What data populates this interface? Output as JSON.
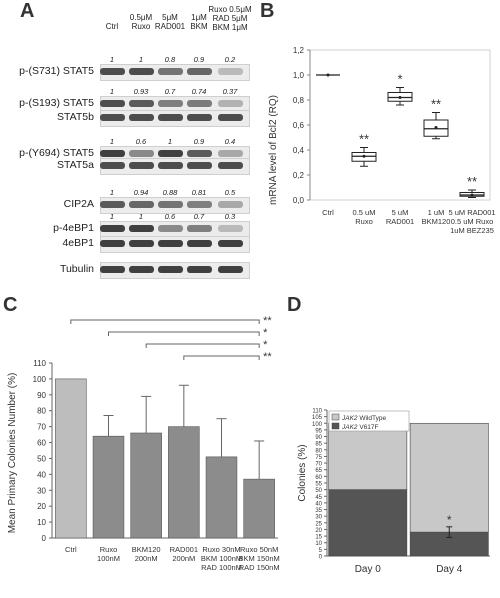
{
  "panels": {
    "a": "A",
    "b": "B",
    "c": "C",
    "d": "D"
  },
  "western_blot": {
    "columns": [
      "Ctrl",
      "0.5μM\nRuxo",
      "5μM\nRAD001",
      "1μM\nBKM",
      "Ruxo 0.5μM\nRAD 5μM\nBKM 1μM"
    ],
    "rows": [
      {
        "label": "p-(S731) STAT5",
        "quant": [
          "1",
          "1",
          "0.8",
          "0.9",
          "0.2"
        ],
        "intensity": [
          0.8,
          0.8,
          0.65,
          0.7,
          0.3
        ]
      },
      {
        "label": "p-(S193) STAT5",
        "quant": [
          "1",
          "0.93",
          "0.7",
          "0.74",
          "0.37"
        ],
        "intensity": [
          0.8,
          0.75,
          0.6,
          0.62,
          0.35
        ]
      },
      {
        "label": "STAT5b",
        "quant": null,
        "intensity": [
          0.8,
          0.8,
          0.8,
          0.8,
          0.8
        ]
      },
      {
        "label": "p-(Y694) STAT5",
        "quant": [
          "1",
          "0.6",
          "1",
          "0.9",
          "0.4"
        ],
        "intensity": [
          0.85,
          0.55,
          0.85,
          0.75,
          0.4
        ]
      },
      {
        "label": "STAT5a",
        "quant": null,
        "intensity": [
          0.8,
          0.8,
          0.8,
          0.8,
          0.8
        ]
      },
      {
        "label": "CIP2A",
        "quant": [
          "1",
          "0.94",
          "0.88",
          "0.81",
          "0.5"
        ],
        "intensity": [
          0.75,
          0.7,
          0.65,
          0.6,
          0.4
        ]
      },
      {
        "label": "p-4eBP1",
        "quant": [
          "1",
          "1",
          "0.6",
          "0.7",
          "0.3"
        ],
        "intensity": [
          0.85,
          0.85,
          0.55,
          0.6,
          0.3
        ]
      },
      {
        "label": "4eBP1",
        "quant": null,
        "intensity": [
          0.85,
          0.85,
          0.85,
          0.85,
          0.85
        ]
      },
      {
        "label": "Tubulin",
        "quant": null,
        "intensity": [
          0.85,
          0.85,
          0.85,
          0.85,
          0.85
        ]
      }
    ]
  },
  "chart_data": [
    {
      "id": "B",
      "type": "box",
      "ylabel": "mRNA level of Bcl2 (RQ)",
      "ylim": [
        0,
        1.2
      ],
      "yticks": [
        "0,0",
        "0,2",
        "0,4",
        "0,6",
        "0,8",
        "1,0",
        "1,2"
      ],
      "categories": [
        "Ctrl",
        "0.5 uM\nRuxo",
        "5 uM\nRAD001",
        "1 uM\nBKM120",
        "5 uM RAD001\n0.5 uM Ruxo\n1uM BEZ235"
      ],
      "boxes": [
        {
          "min": 1.0,
          "q1": 1.0,
          "median": 1.0,
          "q3": 1.0,
          "max": 1.0,
          "mean": 1.0,
          "sig": ""
        },
        {
          "min": 0.27,
          "q1": 0.31,
          "median": 0.35,
          "q3": 0.38,
          "max": 0.42,
          "mean": 0.35,
          "sig": "**"
        },
        {
          "min": 0.76,
          "q1": 0.79,
          "median": 0.82,
          "q3": 0.86,
          "max": 0.9,
          "mean": 0.82,
          "sig": "*"
        },
        {
          "min": 0.49,
          "q1": 0.51,
          "median": 0.57,
          "q3": 0.64,
          "max": 0.7,
          "mean": 0.58,
          "sig": "**"
        },
        {
          "min": 0.02,
          "q1": 0.03,
          "median": 0.04,
          "q3": 0.06,
          "max": 0.08,
          "mean": 0.04,
          "sig": "**"
        }
      ]
    },
    {
      "id": "C",
      "type": "bar",
      "ylabel": "Mean Primary Colonies Number (%)",
      "ylim": [
        0,
        110
      ],
      "yticks": [
        "0",
        "10",
        "20",
        "30",
        "40",
        "50",
        "60",
        "70",
        "80",
        "90",
        "100",
        "110"
      ],
      "categories": [
        "Ctrl",
        "Ruxo\n100nM",
        "BKM120\n200nM",
        "RAD001\n200nM",
        "Ruxo 30nM\nBKM 100nM\nRAD 100nM",
        "Ruxo 50nM\nBKM 150nM\nRAD 150nM"
      ],
      "values": [
        100,
        64,
        66,
        70,
        51,
        37
      ],
      "errors": [
        0,
        13,
        23,
        26,
        24,
        24
      ],
      "brackets": [
        {
          "from": 0,
          "to": 5,
          "label": "**"
        },
        {
          "from": 1,
          "to": 5,
          "label": "*"
        },
        {
          "from": 2,
          "to": 5,
          "label": "*"
        },
        {
          "from": 3,
          "to": 5,
          "label": "**"
        }
      ]
    },
    {
      "id": "D",
      "type": "stacked-bar",
      "ylabel": "Colonies   (%)",
      "ylim": [
        0,
        110
      ],
      "yticks": [
        "0",
        "5",
        "10",
        "15",
        "20",
        "25",
        "30",
        "35",
        "40",
        "45",
        "50",
        "55",
        "60",
        "65",
        "70",
        "75",
        "80",
        "85",
        "90",
        "95",
        "100",
        "105",
        "110"
      ],
      "categories": [
        "Day 0",
        "Day 4"
      ],
      "series": [
        {
          "name": "JAK2 V617F",
          "values": [
            50,
            18
          ],
          "color": "#555555"
        },
        {
          "name": "JAK2 WildType",
          "values": [
            50,
            82
          ],
          "color": "#c8c8c8"
        }
      ],
      "errors": [
        0,
        4
      ],
      "sig": [
        "",
        "*"
      ],
      "legend_prefix": "JAK2",
      "legend_suffixes": [
        "WildType",
        "V617F"
      ]
    }
  ]
}
